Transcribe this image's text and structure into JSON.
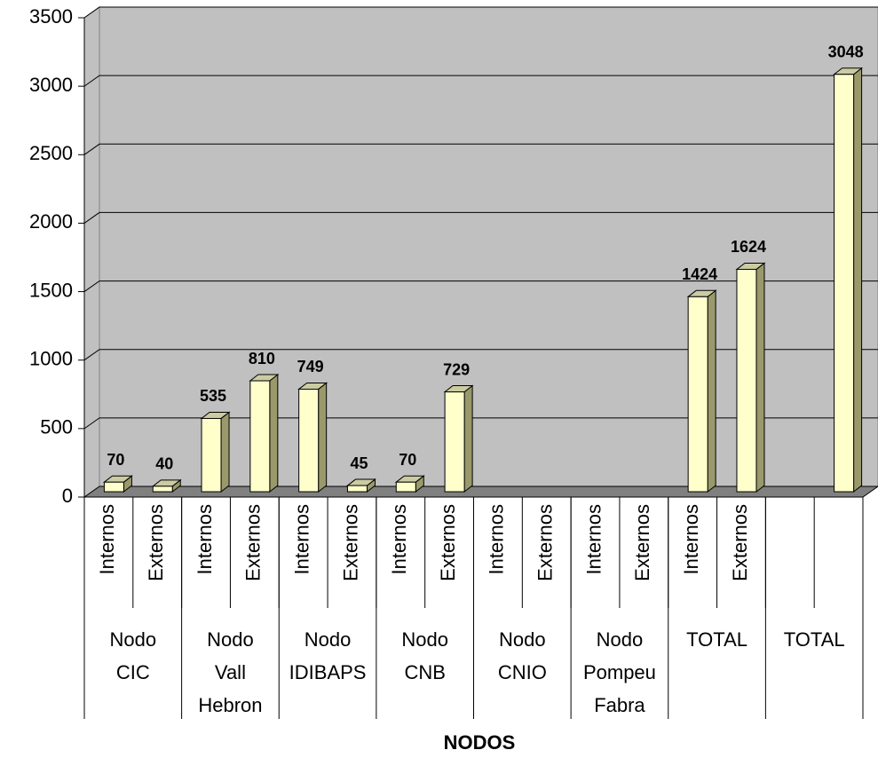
{
  "chart_data": {
    "type": "bar3d",
    "categories": [
      "Internos",
      "Externos",
      "Internos",
      "Externos",
      "Internos",
      "Externos",
      "Internos",
      "Externos",
      "Internos",
      "Externos",
      "Internos",
      "Externos",
      "Internos",
      "Externos",
      null,
      null
    ],
    "groups": [
      {
        "label": "Nodo CIC",
        "span": 2
      },
      {
        "label": "Nodo Vall Hebron",
        "span": 2
      },
      {
        "label": "Nodo IDIBAPS",
        "span": 2
      },
      {
        "label": "Nodo CNB",
        "span": 2
      },
      {
        "label": "Nodo CNIO",
        "span": 2
      },
      {
        "label": "Nodo Pompeu Fabra",
        "span": 2
      },
      {
        "label": "TOTAL",
        "span": 2
      },
      {
        "label": "TOTAL",
        "span": 2
      }
    ],
    "values": [
      70,
      40,
      535,
      810,
      749,
      45,
      70,
      729,
      null,
      null,
      null,
      null,
      1424,
      1624,
      null,
      3048
    ],
    "color": "#ffffcc",
    "label_color": "#ff0000",
    "wall_color": "#c0c0c0",
    "floor_color": "#808080",
    "xlabel": "NODOS",
    "ylim": [
      0,
      3500
    ],
    "yticks": [
      0,
      500,
      1000,
      1500,
      2000,
      2500,
      3000,
      3500
    ],
    "grid": true
  }
}
